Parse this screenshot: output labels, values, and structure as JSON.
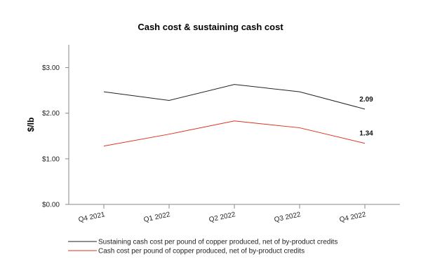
{
  "chart_data": {
    "type": "line",
    "title": "Cash cost & sustaining cash cost",
    "xlabel": "",
    "ylabel": "$/lb",
    "categories": [
      "Q4 2021",
      "Q1 2022",
      "Q2 2022",
      "Q3 2022",
      "Q4 2022"
    ],
    "ylim": [
      0,
      3.5
    ],
    "yticks": [
      0,
      1,
      2,
      3
    ],
    "ytick_labels": [
      "$0.00",
      "$1.00",
      "$2.00",
      "$3.00"
    ],
    "grid": false,
    "legend_position": "bottom-left",
    "series": [
      {
        "name": "Sustaining cash cost per pound of copper produced, net of by-product credits",
        "color": "#222222",
        "values": [
          2.47,
          2.28,
          2.63,
          2.47,
          2.09
        ],
        "end_label": "2.09"
      },
      {
        "name": "Cash cost per pound of copper produced, net of by-product credits",
        "color": "#e03020",
        "values": [
          1.28,
          1.54,
          1.83,
          1.68,
          1.34
        ],
        "end_label": "1.34"
      }
    ]
  }
}
